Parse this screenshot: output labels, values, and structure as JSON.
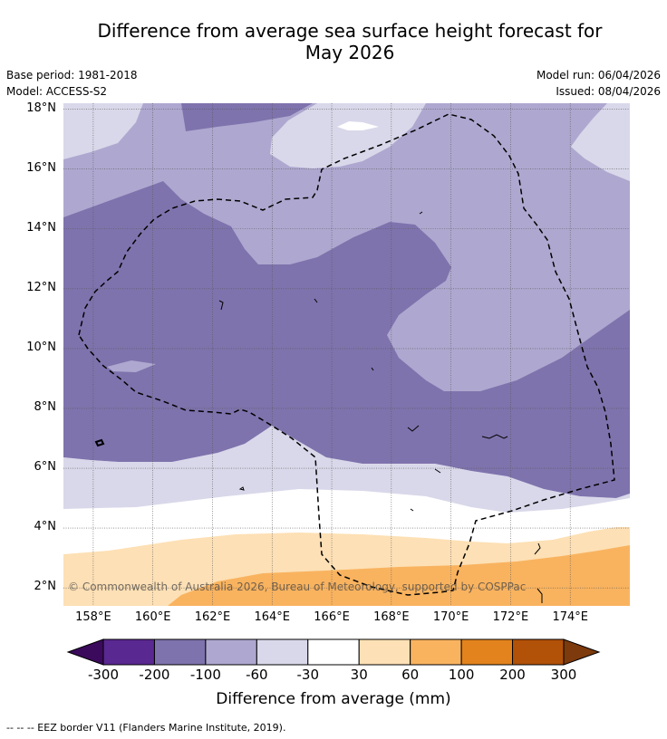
{
  "title_line1": "Difference from average sea surface height forecast for",
  "title_line2": "May 2026",
  "base_period": "Base period: 1981-2018",
  "model": "Model: ACCESS-S2",
  "model_run": "Model run: 06/04/2026",
  "issued": "Issued: 08/04/2026",
  "lat_labels": [
    "18°N",
    "16°N",
    "14°N",
    "12°N",
    "10°N",
    "8°N",
    "6°N",
    "4°N",
    "2°N"
  ],
  "lon_labels": [
    "158°E",
    "160°E",
    "162°E",
    "164°E",
    "166°E",
    "168°E",
    "170°E",
    "172°E",
    "174°E"
  ],
  "copyright": "© Commonwealth of Australia 2026, Bureau of Meteorology, supported by COSPPac",
  "colorbar": {
    "ticks": [
      "-300",
      "-200",
      "-100",
      "-60",
      "-30",
      "30",
      "60",
      "100",
      "200",
      "300"
    ],
    "colors": [
      "#5a2891",
      "#7f73ad",
      "#aea8d0",
      "#d9d8ea",
      "#ffffff",
      "#fde0b5",
      "#f9b35f",
      "#e2831d",
      "#b25209"
    ],
    "low_extend_color": "#3b0a5c",
    "high_extend_color": "#7d3a0c",
    "title": "Difference from average (mm)"
  },
  "footnote": "--  --  -- EEZ border V11 (Flanders Marine Institute, 2019).",
  "map": {
    "lat_range": [
      1.4,
      18.2
    ],
    "lon_range": [
      157.0,
      176.0
    ],
    "colors": {
      "lightlav": "#d9d8ea",
      "lav": "#aea8d0",
      "purple": "#7f73ad",
      "white": "#ffffff",
      "peach": "#fde0b5",
      "orange": "#f9b35f"
    }
  }
}
